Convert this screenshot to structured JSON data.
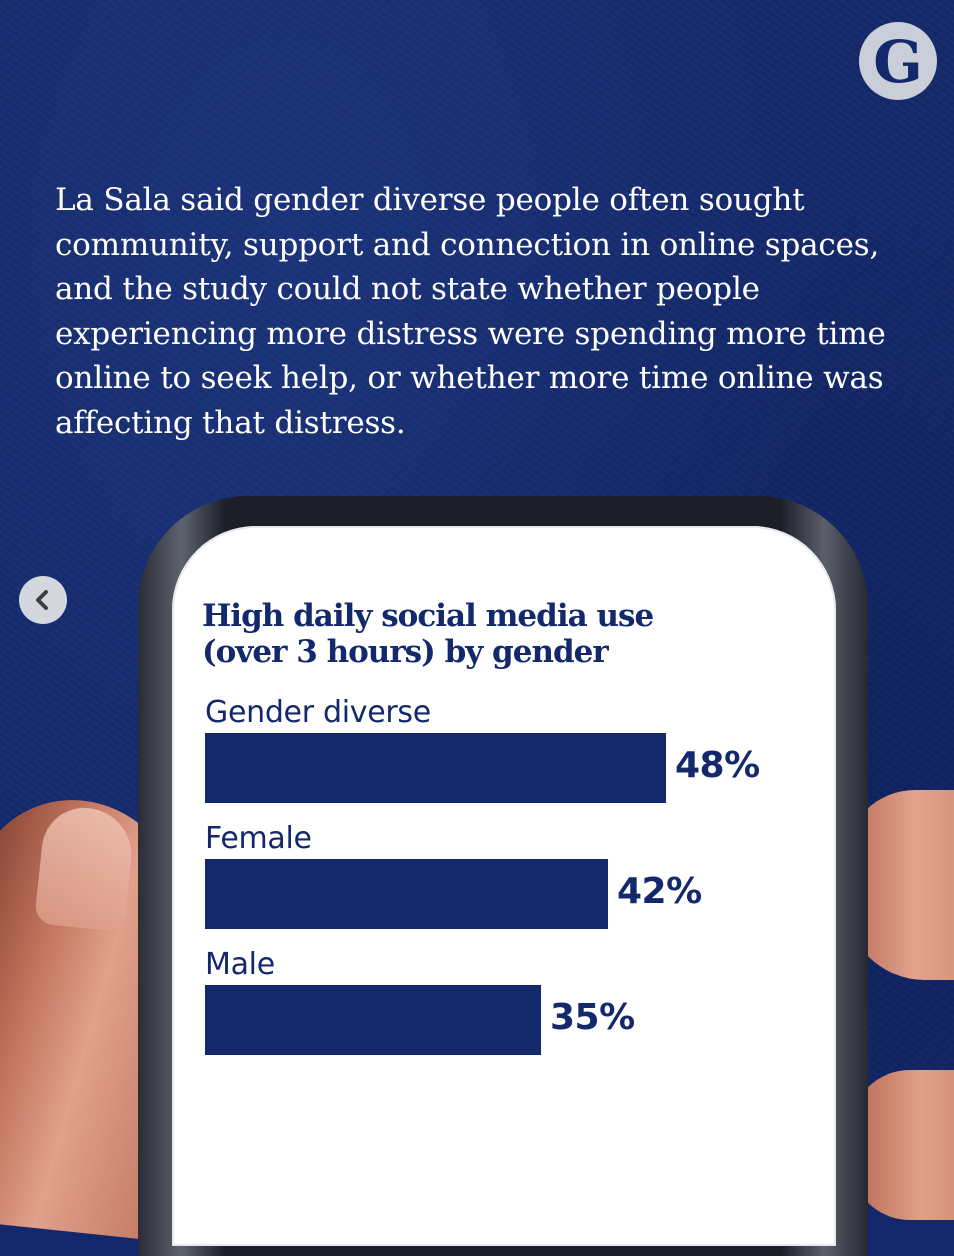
{
  "headline": "La Sala said gender diverse people often sought community, support and connection in online spaces, and the study could not state whether people experiencing more distress were spending more time online to seek help, or whether more time online was affecting that distress.",
  "logo": {
    "letter": "G",
    "icon": "guardian-logo"
  },
  "nav": {
    "back_icon": "chevron-left-icon"
  },
  "colors": {
    "navy": "#14296b",
    "screen": "#ffffff",
    "logo_bg": "#c9ced9"
  },
  "chart_data": {
    "type": "bar",
    "orientation": "horizontal",
    "title": "High daily social media use (over 3 hours) by gender",
    "title_lines": [
      "High daily social media use",
      "(over 3 hours) by gender"
    ],
    "categories": [
      "Gender diverse",
      "Female",
      "Male"
    ],
    "values": [
      48,
      42,
      35
    ],
    "value_labels": [
      "48%",
      "42%",
      "35%"
    ],
    "unit": "%",
    "xlim": [
      0,
      48
    ],
    "grid": false,
    "legend": "none"
  }
}
